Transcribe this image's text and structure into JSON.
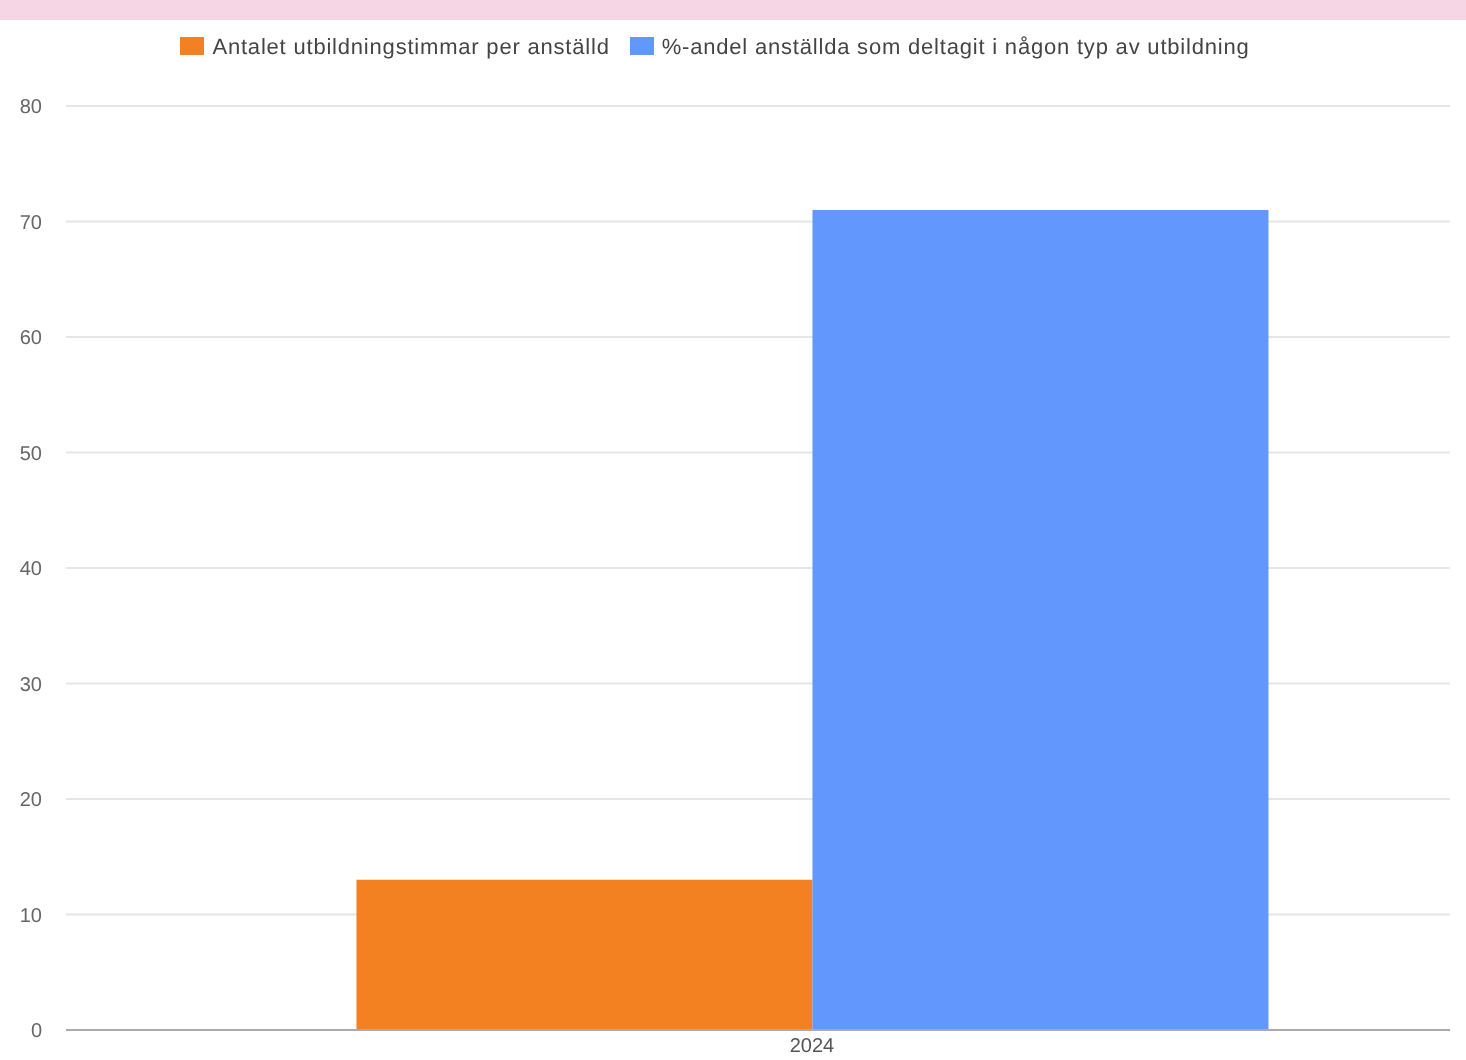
{
  "chart_data": {
    "type": "bar",
    "categories": [
      "2024"
    ],
    "series": [
      {
        "name": "Antalet utbildningstimmar per anställd",
        "color": "#f38121",
        "values": [
          13
        ]
      },
      {
        "name": "%-andel anställda som deltagit i någon typ av utbildning",
        "color": "#6297fd",
        "values": [
          71
        ]
      }
    ],
    "ylim": [
      0,
      80
    ],
    "yticks": [
      0,
      10,
      20,
      30,
      40,
      50,
      60,
      70,
      80
    ],
    "grid": "y",
    "legend": "top"
  }
}
